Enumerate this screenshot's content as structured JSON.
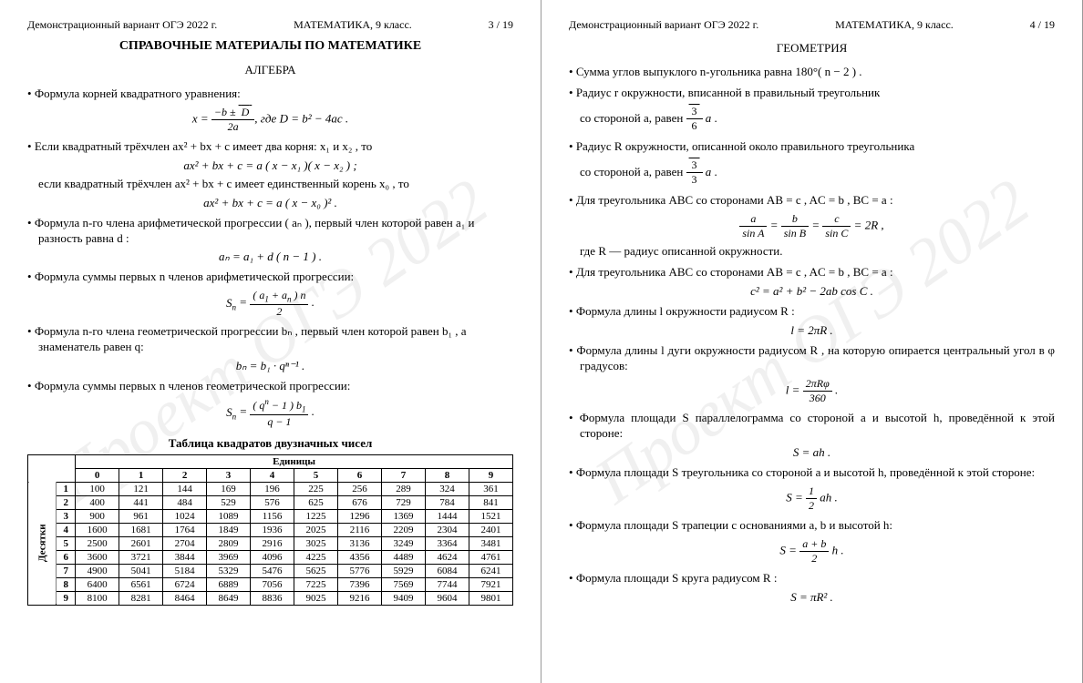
{
  "watermark": "Проект ОГЭ 2022",
  "page_left": {
    "header": {
      "left": "Демонстрационный вариант ОГЭ 2022 г.",
      "center": "МАТЕМАТИКА, 9 класс.",
      "right": "3 / 19"
    },
    "main_title": "СПРАВОЧНЫЕ МАТЕРИАЛЫ ПО МАТЕМАТИКЕ",
    "section": "АЛГЕБРА",
    "b1": "Формула корней квадратного уравнения:",
    "f1_tail": ", где D = b² − 4ac .",
    "b2a": "Если квадратный трёхчлен ax² + bx + c имеет два корня: x₁ и x₂ , то",
    "f2": "ax² + bx + c = a ( x − x₁ )( x − x₂ ) ;",
    "b2b": "если квадратный трёхчлен ax² + bx + c имеет единственный корень x₀ , то",
    "f3": "ax² + bx + c = a ( x − x₀ )² .",
    "b3": "Формула n-го члена арифметической прогрессии ( aₙ ), первый член которой равен a₁ и разность равна d :",
    "f4": "aₙ = a₁ + d ( n − 1 ) .",
    "b4": "Формула суммы первых n членов арифметической прогрессии:",
    "b5": "Формула n-го члена геометрической прогрессии bₙ , первый член которой равен b₁ , а знаменатель равен q:",
    "f6": "bₙ = b₁ · qⁿ⁻¹ .",
    "b6": "Формула суммы первых n членов геометрической прогрессии:",
    "table_title": "Таблица квадратов двузначных чисел",
    "units_label": "Единицы",
    "tens_label": "Десятки",
    "col_headers": [
      "0",
      "1",
      "2",
      "3",
      "4",
      "5",
      "6",
      "7",
      "8",
      "9"
    ],
    "row_headers": [
      "1",
      "2",
      "3",
      "4",
      "5",
      "6",
      "7",
      "8",
      "9"
    ],
    "rows": [
      [
        100,
        121,
        144,
        169,
        196,
        225,
        256,
        289,
        324,
        361
      ],
      [
        400,
        441,
        484,
        529,
        576,
        625,
        676,
        729,
        784,
        841
      ],
      [
        900,
        961,
        1024,
        1089,
        1156,
        1225,
        1296,
        1369,
        1444,
        1521
      ],
      [
        1600,
        1681,
        1764,
        1849,
        1936,
        2025,
        2116,
        2209,
        2304,
        2401
      ],
      [
        2500,
        2601,
        2704,
        2809,
        2916,
        3025,
        3136,
        3249,
        3364,
        3481
      ],
      [
        3600,
        3721,
        3844,
        3969,
        4096,
        4225,
        4356,
        4489,
        4624,
        4761
      ],
      [
        4900,
        5041,
        5184,
        5329,
        5476,
        5625,
        5776,
        5929,
        6084,
        6241
      ],
      [
        6400,
        6561,
        6724,
        6889,
        7056,
        7225,
        7396,
        7569,
        7744,
        7921
      ],
      [
        8100,
        8281,
        8464,
        8649,
        8836,
        9025,
        9216,
        9409,
        9604,
        9801
      ]
    ]
  },
  "page_right": {
    "header": {
      "left": "Демонстрационный вариант ОГЭ 2022 г.",
      "center": "МАТЕМАТИКА, 9 класс.",
      "right": "4 / 19"
    },
    "section": "ГЕОМЕТРИЯ",
    "g1": "Сумма углов выпуклого n-угольника равна 180°( n − 2 ) .",
    "g2a": "Радиус r окружности, вписанной в правильный треугольник",
    "g2b": "со стороной a, равен ",
    "g3a": "Радиус R окружности, описанной около правильного треугольника",
    "g3b": "со стороной a, равен ",
    "g4": "Для треугольника ABC со сторонами AB = c , AC = b , BC = a :",
    "g4b": "где R — радиус описанной окружности.",
    "g5": "Для треугольника ABC со сторонами AB = c , AC = b , BC = a :",
    "f_g5": "c² = a² + b² − 2ab cos C .",
    "g6": "Формула длины l окружности радиусом R :",
    "f_g6": "l = 2πR .",
    "g7": "Формула длины l дуги окружности радиусом R , на которую опирается центральный угол в φ градусов:",
    "g8": "Формула площади S параллелограмма со стороной a и высотой h, проведённой к этой стороне:",
    "f_g8": "S = ah .",
    "g9": "Формула площади S треугольника со стороной a и высотой h, проведённой к этой стороне:",
    "g10": "Формула площади S трапеции с основаниями a, b и высотой h:",
    "g11": "Формула площади S круга радиусом R :",
    "f_g11": "S = πR² ."
  }
}
